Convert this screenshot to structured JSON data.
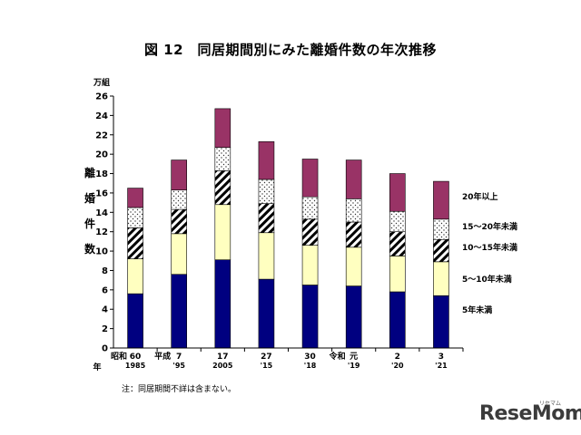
{
  "chart_data": {
    "type": "bar",
    "stacked": true,
    "title": "図 12　同居期間別にみた離婚件数の年次推移",
    "ylabel": "離婚件数",
    "yunit": "万組",
    "ylim": [
      0,
      26
    ],
    "ytick_step": 2,
    "categories": [
      {
        "era": "昭和",
        "year": "60",
        "west": "1985"
      },
      {
        "era": "平成",
        "year": "7",
        "west": "'95"
      },
      {
        "era": "",
        "year": "17",
        "west": "2005"
      },
      {
        "era": "",
        "year": "27",
        "west": "'15"
      },
      {
        "era": "",
        "year": "30",
        "west": "'18"
      },
      {
        "era": "令和",
        "year": "元",
        "west": "'19"
      },
      {
        "era": "",
        "year": "2",
        "west": "'20"
      },
      {
        "era": "",
        "year": "3",
        "west": "'21"
      }
    ],
    "era_suffix": "年",
    "series": [
      {
        "name": "5年未満",
        "color": "#000080",
        "pattern": "solid",
        "values": [
          5.6,
          7.6,
          9.1,
          7.1,
          6.5,
          6.4,
          5.8,
          5.4
        ]
      },
      {
        "name": "5～10年未満",
        "color": "#ffffc0",
        "pattern": "solid",
        "values": [
          3.6,
          4.2,
          5.7,
          4.8,
          4.1,
          4.0,
          3.7,
          3.5
        ]
      },
      {
        "name": "10～15年未満",
        "color": "#ffffff",
        "pattern": "hatch",
        "values": [
          3.2,
          2.5,
          3.5,
          3.0,
          2.7,
          2.6,
          2.5,
          2.3
        ]
      },
      {
        "name": "15～20年未満",
        "color": "#ffffff",
        "pattern": "dots",
        "values": [
          2.1,
          2.0,
          2.4,
          2.5,
          2.3,
          2.4,
          2.1,
          2.1
        ]
      },
      {
        "name": "20年以上",
        "color": "#993366",
        "pattern": "solid",
        "values": [
          2.0,
          3.1,
          4.0,
          3.9,
          3.9,
          4.0,
          3.9,
          3.9
        ]
      }
    ],
    "grid": false,
    "legend": "right"
  },
  "footnote": "注：同居期間不詳は含まない。",
  "watermark": "ReseMom",
  "watermark_sub": "リセマム"
}
